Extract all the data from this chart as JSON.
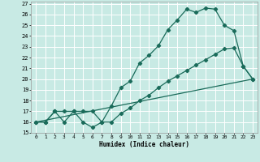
{
  "title": "",
  "xlabel": "Humidex (Indice chaleur)",
  "bg_color": "#c8eae4",
  "grid_color": "#ffffff",
  "line_color": "#1a6b5a",
  "xlim": [
    -0.5,
    23.5
  ],
  "ylim": [
    15,
    27.2
  ],
  "x_ticks": [
    0,
    1,
    2,
    3,
    4,
    5,
    6,
    7,
    8,
    9,
    10,
    11,
    12,
    13,
    14,
    15,
    16,
    17,
    18,
    19,
    20,
    21,
    22,
    23
  ],
  "y_ticks": [
    15,
    16,
    17,
    18,
    19,
    20,
    21,
    22,
    23,
    24,
    25,
    26,
    27
  ],
  "line1_x": [
    0,
    1,
    2,
    3,
    4,
    5,
    6,
    7,
    8,
    9,
    10,
    11,
    12,
    13,
    14,
    15,
    16,
    17,
    18,
    19,
    20,
    21,
    22,
    23
  ],
  "line1_y": [
    16,
    16,
    17,
    16,
    17,
    16,
    15.5,
    16,
    17.5,
    19.2,
    19.8,
    21.5,
    22.2,
    23.1,
    24.6,
    25.5,
    26.5,
    26.2,
    26.6,
    26.5,
    25.0,
    24.5,
    21.2,
    20.0
  ],
  "line2_x": [
    0,
    1,
    2,
    3,
    4,
    5,
    6,
    7,
    8,
    9,
    10,
    11,
    12,
    13,
    14,
    15,
    16,
    17,
    18,
    19,
    20,
    21,
    22,
    23
  ],
  "line2_y": [
    16,
    16,
    17,
    17,
    17,
    17,
    17,
    16,
    16,
    16.8,
    17.3,
    18.0,
    18.5,
    19.2,
    19.8,
    20.3,
    20.8,
    21.3,
    21.8,
    22.3,
    22.8,
    22.9,
    21.2,
    20.0
  ],
  "line3_x": [
    0,
    23
  ],
  "line3_y": [
    16,
    20
  ],
  "marker_style": "D",
  "marker_size": 2.2,
  "line_width": 0.9
}
